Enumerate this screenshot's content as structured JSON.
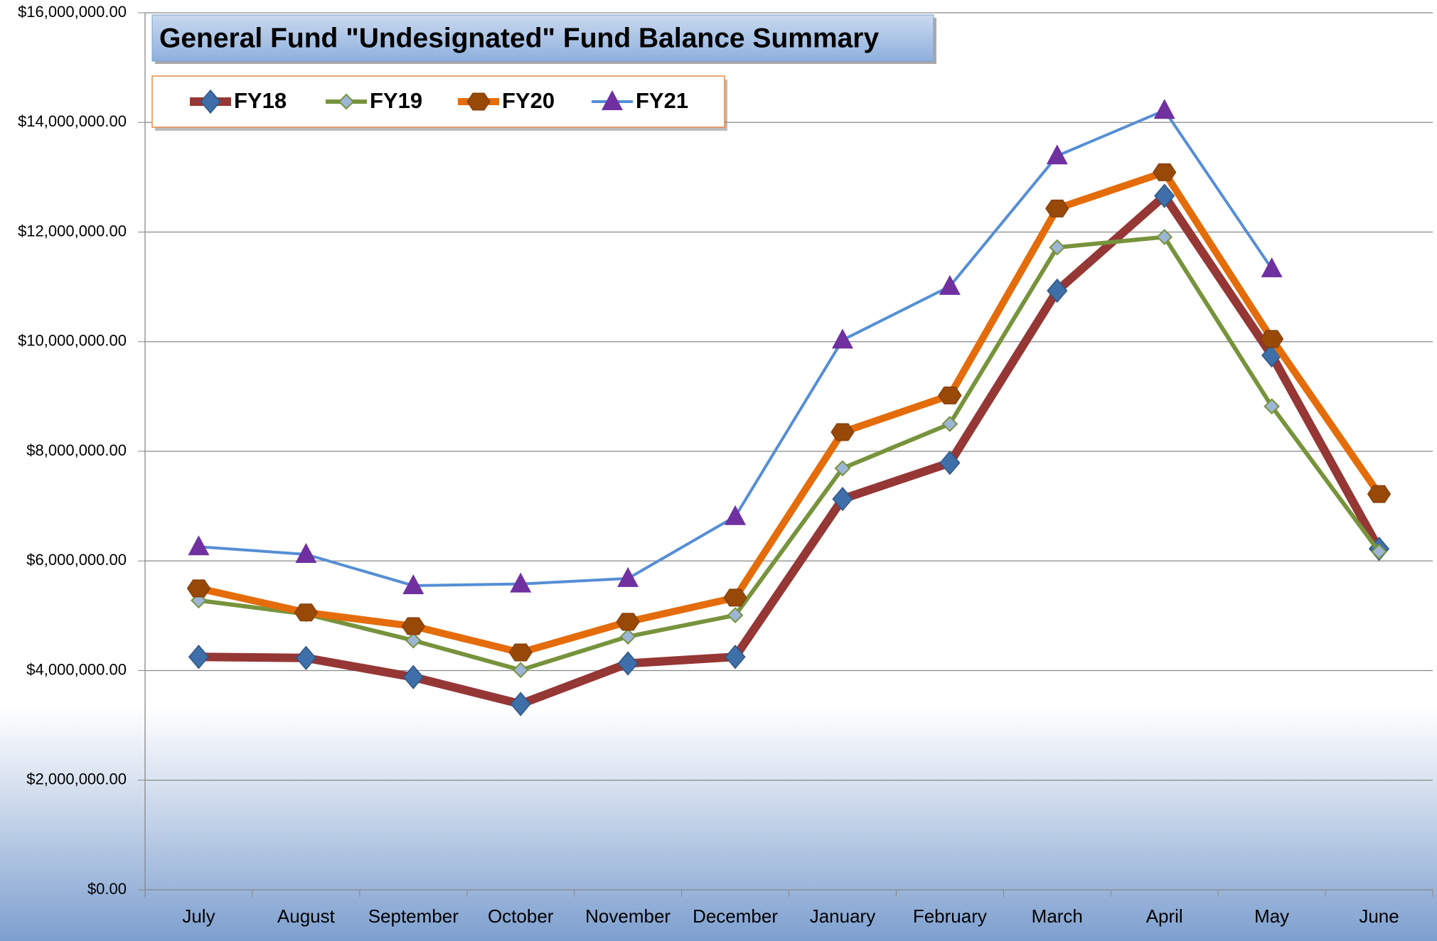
{
  "chart_data": {
    "type": "line",
    "title": "General Fund \"Undesignated\" Fund Balance Summary",
    "categories": [
      "July",
      "August",
      "September",
      "October",
      "November",
      "December",
      "January",
      "February",
      "March",
      "April",
      "May",
      "June"
    ],
    "series": [
      {
        "name": "FY18",
        "color": "#953735",
        "marker": "diamond",
        "marker_color": "#3f6fa8",
        "values": [
          4250000,
          4230000,
          3880000,
          3390000,
          4130000,
          4250000,
          7130000,
          7790000,
          10930000,
          12660000,
          9750000,
          6220000
        ]
      },
      {
        "name": "FY19",
        "color": "#77933c",
        "marker": "small-diamond",
        "marker_color": "#9db5d6",
        "values": [
          5280000,
          5030000,
          4550000,
          4010000,
          4620000,
          5010000,
          7690000,
          8500000,
          11720000,
          11910000,
          8820000,
          6170000
        ]
      },
      {
        "name": "FY20",
        "color": "#e46c0a",
        "marker": "hexagon",
        "marker_color": "#984807",
        "values": [
          5500000,
          5060000,
          4810000,
          4330000,
          4890000,
          5330000,
          8350000,
          9020000,
          12430000,
          13090000,
          10050000,
          7220000
        ]
      },
      {
        "name": "FY21",
        "color": "#558ed5",
        "marker": "triangle",
        "marker_color": "#7030a0",
        "values": [
          6260000,
          6120000,
          5550000,
          5580000,
          5680000,
          6810000,
          10030000,
          11010000,
          13390000,
          14220000,
          11330000,
          null
        ]
      }
    ],
    "ylim": [
      0,
      16000000
    ],
    "yticks": [
      {
        "value": 0,
        "label": "$0.00"
      },
      {
        "value": 2000000,
        "label": "$2,000,000.00"
      },
      {
        "value": 4000000,
        "label": "$4,000,000.00"
      },
      {
        "value": 6000000,
        "label": "$6,000,000.00"
      },
      {
        "value": 8000000,
        "label": "$8,000,000.00"
      },
      {
        "value": 10000000,
        "label": "$10,000,000.00"
      },
      {
        "value": 12000000,
        "label": "$12,000,000.00"
      },
      {
        "value": 14000000,
        "label": "$14,000,000.00"
      },
      {
        "value": 16000000,
        "label": "$16,000,000.00"
      }
    ],
    "grid": true
  }
}
